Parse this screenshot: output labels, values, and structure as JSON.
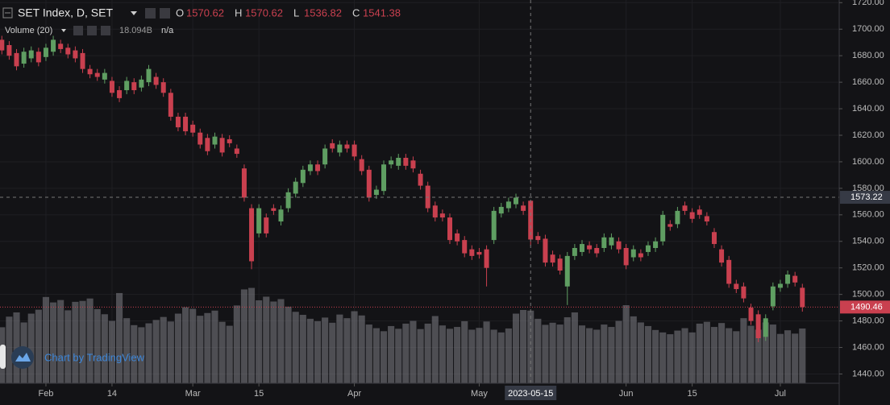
{
  "chart_data": {
    "type": "candlestick",
    "title": "SET Index, D, SET",
    "legend": [
      {
        "label": "O",
        "value": 1570.62
      },
      {
        "label": "H",
        "value": 1570.62
      },
      {
        "label": "L",
        "value": 1536.82
      },
      {
        "label": "C",
        "value": 1541.38
      }
    ],
    "volume_label": "Volume (20)",
    "volume_value": "18.094B",
    "volume_extra": "n/a",
    "watermark": "Chart by TradingView",
    "up_color": "#5f9e62",
    "down_color": "#c9404f",
    "volume_color": "rgba(128,128,134,0.55)",
    "grid": true,
    "x": [
      "2023-01-24",
      "2023-01-25",
      "2023-01-26",
      "2023-01-27",
      "2023-01-30",
      "2023-01-31",
      "2023-02-01",
      "2023-02-02",
      "2023-02-03",
      "2023-02-06",
      "2023-02-07",
      "2023-02-08",
      "2023-02-09",
      "2023-02-10",
      "2023-02-13",
      "2023-02-14",
      "2023-02-15",
      "2023-02-16",
      "2023-02-17",
      "2023-02-20",
      "2023-02-21",
      "2023-02-22",
      "2023-02-23",
      "2023-02-24",
      "2023-02-27",
      "2023-02-28",
      "2023-03-01",
      "2023-03-02",
      "2023-03-03",
      "2023-03-07",
      "2023-03-08",
      "2023-03-09",
      "2023-03-10",
      "2023-03-13",
      "2023-03-14",
      "2023-03-15",
      "2023-03-16",
      "2023-03-17",
      "2023-03-20",
      "2023-03-21",
      "2023-03-22",
      "2023-03-23",
      "2023-03-24",
      "2023-03-27",
      "2023-03-28",
      "2023-03-29",
      "2023-03-30",
      "2023-03-31",
      "2023-04-03",
      "2023-04-04",
      "2023-04-05",
      "2023-04-07",
      "2023-04-10",
      "2023-04-11",
      "2023-04-12",
      "2023-04-17",
      "2023-04-18",
      "2023-04-19",
      "2023-04-20",
      "2023-04-21",
      "2023-04-24",
      "2023-04-25",
      "2023-04-26",
      "2023-04-27",
      "2023-04-28",
      "2023-05-02",
      "2023-05-03",
      "2023-05-08",
      "2023-05-09",
      "2023-05-10",
      "2023-05-11",
      "2023-05-12",
      "2023-05-15",
      "2023-05-16",
      "2023-05-17",
      "2023-05-18",
      "2023-05-19",
      "2023-05-22",
      "2023-05-23",
      "2023-05-24",
      "2023-05-25",
      "2023-05-26",
      "2023-05-29",
      "2023-05-30",
      "2023-05-31",
      "2023-06-01",
      "2023-06-02",
      "2023-06-06",
      "2023-06-07",
      "2023-06-08",
      "2023-06-09",
      "2023-06-12",
      "2023-06-13",
      "2023-06-14",
      "2023-06-15",
      "2023-06-16",
      "2023-06-19",
      "2023-06-20",
      "2023-06-21",
      "2023-06-22",
      "2023-06-23",
      "2023-06-26",
      "2023-06-27",
      "2023-06-28",
      "2023-06-29",
      "2023-06-30",
      "2023-07-03",
      "2023-07-04",
      "2023-07-05",
      "2023-07-06"
    ],
    "open": [
      1692,
      1688,
      1682,
      1674,
      1678,
      1683,
      1679,
      1683,
      1689,
      1686,
      1684,
      1682,
      1670,
      1667,
      1662,
      1661,
      1654,
      1654,
      1660,
      1656,
      1660,
      1664,
      1660,
      1652,
      1634,
      1634,
      1628,
      1622,
      1618,
      1613,
      1618,
      1617,
      1610,
      1595,
      1565,
      1546,
      1558,
      1565,
      1555,
      1565,
      1576,
      1584,
      1593,
      1598,
      1598,
      1614,
      1607,
      1613,
      1613,
      1602,
      1594,
      1575,
      1578,
      1598,
      1597,
      1603,
      1601,
      1591,
      1582,
      1567,
      1561,
      1558,
      1546,
      1541,
      1534,
      1532,
      1534,
      1541,
      1561,
      1565,
      1568,
      1567,
      1570.62,
      1544,
      1542,
      1530,
      1527,
      1506,
      1529,
      1532,
      1537,
      1535,
      1535,
      1537,
      1540,
      1535,
      1528,
      1531,
      1532,
      1535,
      1540,
      1553,
      1553,
      1567,
      1562,
      1564,
      1559,
      1547,
      1534,
      1526,
      1508,
      1506,
      1490,
      1485,
      1468,
      1491,
      1505,
      1508,
      1514,
      1505
    ],
    "high": [
      1695,
      1691,
      1685,
      1686,
      1687,
      1686,
      1689,
      1695,
      1692,
      1689,
      1687,
      1685,
      1673,
      1670,
      1670,
      1664,
      1657,
      1664,
      1663,
      1665,
      1673,
      1667,
      1663,
      1655,
      1637,
      1637,
      1631,
      1625,
      1621,
      1622,
      1621,
      1620,
      1613,
      1598,
      1568,
      1568,
      1561,
      1568,
      1567,
      1580,
      1588,
      1597,
      1601,
      1601,
      1613,
      1617,
      1616,
      1616,
      1616,
      1605,
      1597,
      1582,
      1601,
      1604,
      1606,
      1606,
      1604,
      1594,
      1585,
      1570,
      1564,
      1561,
      1549,
      1544,
      1537,
      1535,
      1537,
      1566,
      1569,
      1573,
      1576,
      1570,
      1570.62,
      1547,
      1545,
      1533,
      1530,
      1532,
      1538,
      1541,
      1540,
      1538,
      1546,
      1546,
      1543,
      1538,
      1537,
      1534,
      1540,
      1543,
      1563,
      1556,
      1566,
      1570,
      1565,
      1567,
      1562,
      1550,
      1537,
      1529,
      1511,
      1509,
      1493,
      1488,
      1485,
      1509,
      1511,
      1518,
      1517,
      1508
    ],
    "low": [
      1681,
      1677,
      1669,
      1671,
      1675,
      1672,
      1676,
      1680,
      1682,
      1678,
      1675,
      1667,
      1663,
      1661,
      1659,
      1649,
      1645,
      1651,
      1651,
      1653,
      1657,
      1655,
      1649,
      1631,
      1623,
      1620,
      1619,
      1610,
      1605,
      1610,
      1604,
      1611,
      1603,
      1570,
      1519,
      1543,
      1543,
      1560,
      1552,
      1562,
      1573,
      1581,
      1590,
      1590,
      1595,
      1607,
      1604,
      1607,
      1601,
      1590,
      1570,
      1572,
      1575,
      1595,
      1594,
      1594,
      1592,
      1579,
      1562,
      1555,
      1555,
      1538,
      1537,
      1528,
      1526,
      1527,
      1506,
      1538,
      1558,
      1562,
      1565,
      1560,
      1536.82,
      1538,
      1521,
      1521,
      1515,
      1492,
      1526,
      1529,
      1531,
      1528,
      1532,
      1534,
      1531,
      1519,
      1525,
      1525,
      1529,
      1532,
      1537,
      1548,
      1550,
      1560,
      1554,
      1557,
      1552,
      1535,
      1521,
      1505,
      1501,
      1494,
      1477,
      1464,
      1465,
      1488,
      1502,
      1505,
      1506,
      1487
    ],
    "close": [
      1684,
      1680,
      1672,
      1683,
      1684,
      1675,
      1686,
      1692,
      1685,
      1681,
      1678,
      1670,
      1666,
      1664,
      1667,
      1652,
      1648,
      1661,
      1654,
      1662,
      1670,
      1658,
      1652,
      1634,
      1626,
      1623,
      1622,
      1613,
      1608,
      1619,
      1607,
      1614,
      1606,
      1573,
      1525,
      1565,
      1546,
      1563,
      1564,
      1577,
      1585,
      1594,
      1598,
      1593,
      1610,
      1610,
      1613,
      1610,
      1604,
      1593,
      1573,
      1579,
      1598,
      1601,
      1603,
      1597,
      1595,
      1582,
      1565,
      1558,
      1558,
      1541,
      1540,
      1531,
      1529,
      1530,
      1520,
      1563,
      1566,
      1570,
      1573,
      1563,
      1541.38,
      1541,
      1524,
      1524,
      1518,
      1529,
      1535,
      1538,
      1534,
      1531,
      1543,
      1543,
      1534,
      1522,
      1534,
      1528,
      1537,
      1540,
      1560,
      1551,
      1563,
      1563,
      1557,
      1560,
      1555,
      1538,
      1524,
      1508,
      1504,
      1497,
      1480,
      1467,
      1482,
      1506,
      1508,
      1515,
      1509,
      1490.46
    ],
    "volume": [
      18.5,
      22.0,
      23.4,
      20.1,
      23.0,
      24.3,
      28.5,
      26.7,
      27.5,
      24.1,
      26.9,
      27.2,
      28.0,
      24.5,
      22.8,
      20.6,
      29.8,
      21.5,
      19.2,
      18.5,
      19.8,
      20.9,
      21.9,
      20.4,
      23.0,
      25.1,
      24.6,
      22.3,
      23.2,
      24.0,
      20.3,
      19.0,
      25.7,
      31.0,
      31.5,
      27.4,
      28.6,
      27.0,
      27.8,
      25.3,
      23.6,
      22.6,
      21.3,
      20.5,
      21.7,
      20.0,
      22.7,
      21.5,
      23.8,
      22.4,
      19.4,
      18.2,
      17.2,
      18.9,
      18.0,
      19.7,
      20.6,
      17.9,
      19.7,
      22.2,
      19.1,
      18.0,
      18.6,
      20.5,
      17.7,
      18.3,
      20.4,
      17.7,
      16.8,
      18.1,
      23.0,
      24.2,
      24.0,
      21.3,
      19.3,
      20.0,
      19.4,
      21.8,
      23.4,
      19.1,
      18.2,
      17.7,
      19.4,
      18.6,
      20.6,
      25.8,
      22.1,
      20.1,
      18.9,
      17.6,
      16.8,
      16.2,
      17.4,
      18.2,
      16.8,
      19.7,
      20.3,
      18.6,
      19.9,
      18.2,
      17.2,
      21.5,
      19.0,
      17.7,
      20.1,
      19.4,
      16.3,
      17.5,
      16.4,
      18.094
    ],
    "ylim": [
      1433,
      1722
    ],
    "yticks": [
      {
        "value": 1720,
        "label": "1720.00"
      },
      {
        "value": 1700,
        "label": "1700.00"
      },
      {
        "value": 1680,
        "label": "1680.00"
      },
      {
        "value": 1660,
        "label": "1660.00"
      },
      {
        "value": 1640,
        "label": "1640.00"
      },
      {
        "value": 1620,
        "label": "1620.00"
      },
      {
        "value": 1600,
        "label": "1600.00"
      },
      {
        "value": 1580,
        "label": "1580.00"
      },
      {
        "value": 1560,
        "label": "1560.00"
      },
      {
        "value": 1540,
        "label": "1540.00"
      },
      {
        "value": 1520,
        "label": "1520.00"
      },
      {
        "value": 1500,
        "label": "1500.00"
      },
      {
        "value": 1480,
        "label": "1480.00"
      },
      {
        "value": 1460,
        "label": "1460.00"
      },
      {
        "value": 1440,
        "label": "1440.00"
      }
    ],
    "xticks": [
      {
        "value": "2023-02-01",
        "label": "Feb"
      },
      {
        "value": "2023-02-14",
        "label": "14"
      },
      {
        "value": "2023-03-01",
        "label": "Mar"
      },
      {
        "value": "2023-03-15",
        "label": "15"
      },
      {
        "value": "2023-04-03",
        "label": "Apr"
      },
      {
        "value": "2023-05-02",
        "label": "May"
      },
      {
        "value": "2023-06-01",
        "label": "Jun"
      },
      {
        "value": "2023-06-15",
        "label": "15"
      },
      {
        "value": "2023-07-03",
        "label": "Jul"
      }
    ],
    "crosshair": {
      "x": "2023-05-15",
      "price": 1573.22
    },
    "last_price": 1490.46
  }
}
